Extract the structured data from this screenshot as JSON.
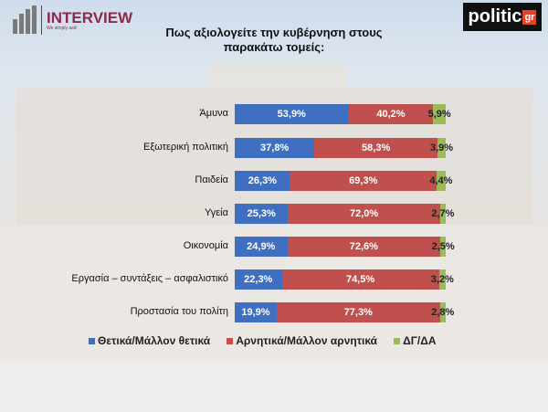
{
  "header": {
    "brand_left": "INTERVIEW",
    "brand_tagline": "We simply ask!",
    "brand_right": "politic",
    "brand_right_suffix": "gr"
  },
  "chart_data": {
    "type": "bar",
    "orientation": "horizontal",
    "stacked": true,
    "title": "Πως αξιολογείτε την κυβέρνηση στους παρακάτω τομείς:",
    "categories": [
      "Άμυνα",
      "Εξωτερική πολιτική",
      "Παιδεία",
      "Υγεία",
      "Οικονομία",
      "Εργασία – συντάξεις – ασφαλιστικό",
      "Προστασία του πολίτη"
    ],
    "series": [
      {
        "name": "Θετικά/Μάλλον θετικά",
        "color": "#3f6fc1",
        "values": [
          53.9,
          37.8,
          26.3,
          25.3,
          24.9,
          22.3,
          19.9
        ],
        "labels": [
          "53,9%",
          "37,8%",
          "26,3%",
          "25,3%",
          "24,9%",
          "22,3%",
          "19,9%"
        ],
        "label_color": "#ffffff"
      },
      {
        "name": "Αρνητικά/Μάλλον αρνητικά",
        "color": "#c0504d",
        "values": [
          40.2,
          58.3,
          69.3,
          72.0,
          72.6,
          74.5,
          77.3
        ],
        "labels": [
          "40,2%",
          "58,3%",
          "69,3%",
          "72,0%",
          "72,6%",
          "74,5%",
          "77,3%"
        ],
        "label_color": "#ffffff"
      },
      {
        "name": "ΔΓ/ΔΑ",
        "color": "#9bbb59",
        "values": [
          5.9,
          3.9,
          4.4,
          2.7,
          2.5,
          3.2,
          2.8
        ],
        "labels": [
          "5,9%",
          "3,9%",
          "4,4%",
          "2,7%",
          "2,5%",
          "3,2%",
          "2,8%"
        ],
        "label_color": "#222222"
      }
    ],
    "xlim": [
      0,
      100
    ],
    "grid": false,
    "legend": "bottom"
  }
}
